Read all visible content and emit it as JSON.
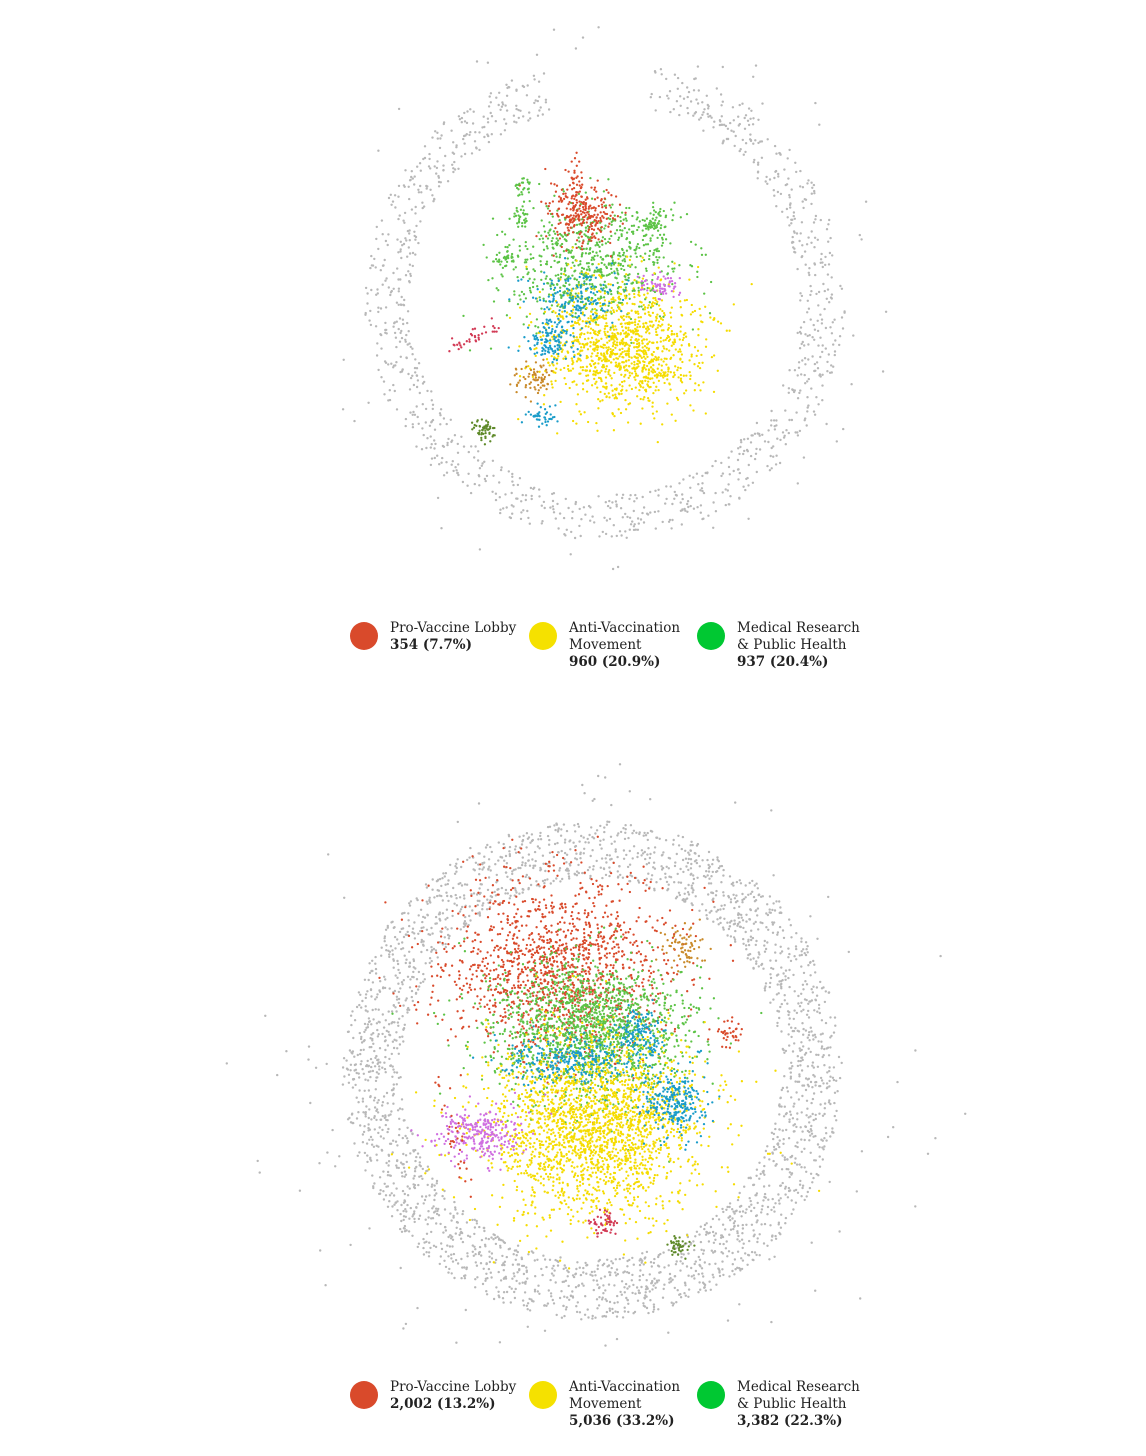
{
  "colors": {
    "node_clusters": {
      "red": "#d94a2b",
      "yellow": "#f5dc00",
      "green": "#5cc346",
      "blue": "#1a9cc9",
      "magenta": "#cf6fe0",
      "orange": "#c98a2a",
      "olive": "#5f8a2a",
      "crimson": "#d23a55",
      "gray": "#b8b8b8"
    },
    "legend_swatch": {
      "pro": "#d94a2b",
      "anti": "#f5e100",
      "medical": "#00c832"
    }
  },
  "networks": [
    {
      "legend": [
        {
          "label": "Pro-Vaccine Lobby",
          "count": "354 (7.7%)",
          "color": "#d94a2b"
        },
        {
          "label": "Anti-Vaccination\nMovement",
          "count": "960 (20.9%)",
          "color": "#f5e100"
        },
        {
          "label": "Medical Research\n& Public Health",
          "count": "937 (20.4%)",
          "color": "#00c832"
        }
      ]
    },
    {
      "legend": [
        {
          "label": "Pro-Vaccine Lobby",
          "count": "2,002 (13.2%)",
          "color": "#d94a2b"
        },
        {
          "label": "Anti-Vaccination\nMovement",
          "count": "5,036 (33.2%)",
          "color": "#f5e100"
        },
        {
          "label": "Medical Research\n& Public Health",
          "count": "3,382 (22.3%)",
          "color": "#00c832"
        }
      ]
    }
  ]
}
